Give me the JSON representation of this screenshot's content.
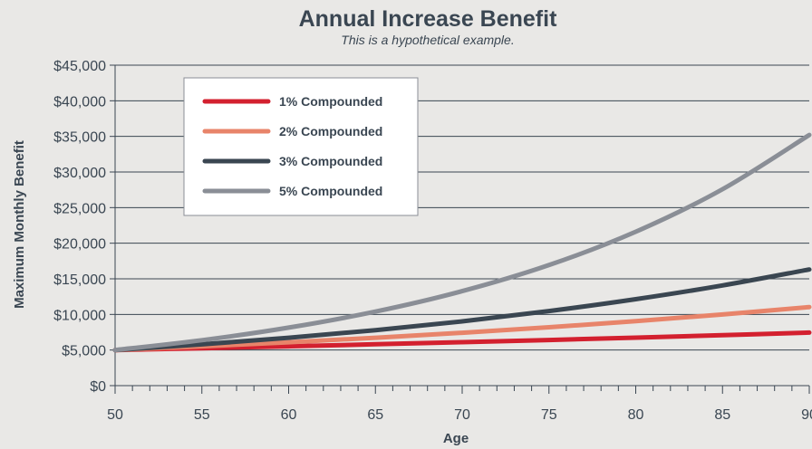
{
  "chart_data": {
    "type": "line",
    "title": "Annual Increase Benefit",
    "subtitle": "This is a hypothetical example.",
    "xlabel": "Age",
    "ylabel": "Maximum Monthly Benefit",
    "xlim": [
      50,
      90
    ],
    "ylim": [
      0,
      45000
    ],
    "x_ticks": [
      50,
      55,
      60,
      65,
      70,
      75,
      80,
      85,
      90
    ],
    "y_ticks": [
      0,
      5000,
      10000,
      15000,
      20000,
      25000,
      30000,
      35000,
      40000,
      45000
    ],
    "y_tick_labels": [
      "$0",
      "$5,000",
      "$10,000",
      "$15,000",
      "$20,000",
      "$25,000",
      "$30,000",
      "$35,000",
      "$40,000",
      "$45,000"
    ],
    "grid": "horizontal",
    "legend_position": "top-left",
    "x": [
      50,
      55,
      60,
      65,
      70,
      75,
      80,
      85,
      90
    ],
    "series": [
      {
        "name": "1% Compounded",
        "color": "#d3202f",
        "values": [
          5000,
          5255,
          5523,
          5805,
          6100,
          6411,
          6740,
          7085,
          7445
        ]
      },
      {
        "name": "2% Compounded",
        "color": "#e8846a",
        "values": [
          5000,
          5520,
          6095,
          6730,
          7430,
          8200,
          9055,
          9995,
          11040
        ]
      },
      {
        "name": "3% Compounded",
        "color": "#3a4651",
        "values": [
          5000,
          5795,
          6720,
          7790,
          9030,
          10470,
          12140,
          14070,
          16310
        ]
      },
      {
        "name": "5% Compounded",
        "color": "#8a8e96",
        "values": [
          5000,
          6380,
          8145,
          10395,
          13265,
          16930,
          21610,
          27580,
          35200
        ]
      }
    ]
  }
}
